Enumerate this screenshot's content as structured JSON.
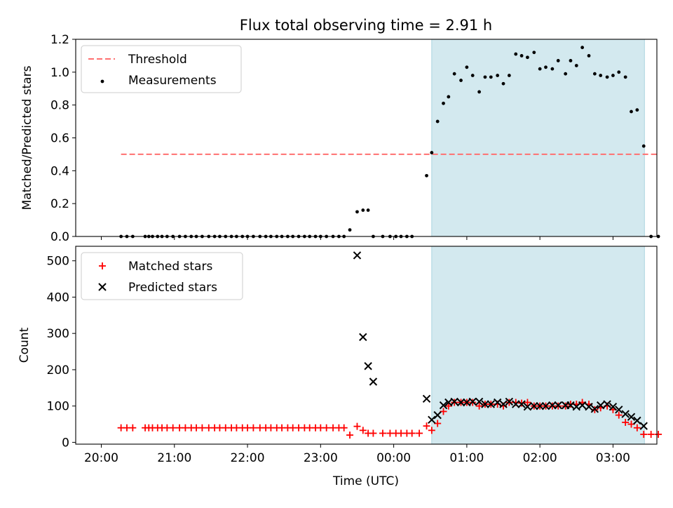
{
  "figure": {
    "title": "Flux total observing time = 2.91 h",
    "xlabel": "Time (UTC)",
    "x_ticks": [
      "20:00",
      "21:00",
      "22:00",
      "23:00",
      "00:00",
      "01:00",
      "02:00",
      "03:00"
    ]
  },
  "colors": {
    "threshold": "#ff7070",
    "measurement": "#000000",
    "matched": "#ff0000",
    "predicted": "#000000",
    "window_fill": "#d3e9ef",
    "window_edge": "#a9d4df"
  },
  "chart_data": [
    {
      "type": "scatter",
      "title": "Flux total observing time = 2.91 h",
      "xlabel": "",
      "ylabel": "Matched/Predicted stars",
      "x_unit": "hours from 20:00 UTC",
      "xlim": [
        -0.35,
        7.6
      ],
      "ylim": [
        0,
        1.2
      ],
      "y_ticks": [
        0,
        0.2,
        0.4,
        0.6,
        0.8,
        1.0,
        1.2
      ],
      "y_tick_labels": [
        "0.0",
        "0.2",
        "0.4",
        "0.6",
        "0.8",
        "1.0",
        "1.2"
      ],
      "grid": false,
      "legend": {
        "position": "top-left",
        "entries": [
          "Threshold",
          "Measurements"
        ]
      },
      "shaded_window": [
        4.52,
        7.43
      ],
      "threshold": {
        "name": "Threshold",
        "y": 0.5,
        "x_start": 0.27,
        "x_end": 7.6
      },
      "series": [
        {
          "name": "Measurements",
          "x": [
            0.27,
            0.35,
            0.43,
            0.6,
            0.65,
            0.7,
            0.77,
            0.83,
            0.9,
            0.98,
            1.07,
            1.15,
            1.23,
            1.3,
            1.38,
            1.47,
            1.55,
            1.62,
            1.7,
            1.78,
            1.85,
            1.93,
            2.0,
            2.08,
            2.17,
            2.25,
            2.32,
            2.4,
            2.47,
            2.55,
            2.62,
            2.7,
            2.78,
            2.85,
            2.93,
            3.0,
            3.08,
            3.17,
            3.25,
            3.32,
            3.4,
            3.5,
            3.58,
            3.65,
            3.72,
            3.85,
            3.95,
            4.03,
            4.1,
            4.18,
            4.25,
            4.45,
            4.52,
            4.6,
            4.68,
            4.75,
            4.83,
            4.92,
            5.0,
            5.08,
            5.17,
            5.25,
            5.33,
            5.42,
            5.5,
            5.58,
            5.67,
            5.75,
            5.83,
            5.92,
            6.0,
            6.08,
            6.17,
            6.25,
            6.35,
            6.42,
            6.5,
            6.58,
            6.67,
            6.75,
            6.83,
            6.92,
            7.0,
            7.08,
            7.17,
            7.25,
            7.33,
            7.42,
            7.52,
            7.62
          ],
          "y": [
            0,
            0,
            0,
            0,
            0,
            0,
            0,
            0,
            0,
            0,
            0,
            0,
            0,
            0,
            0,
            0,
            0,
            0,
            0,
            0,
            0,
            0,
            0,
            0,
            0,
            0,
            0,
            0,
            0,
            0,
            0,
            0,
            0,
            0,
            0,
            0,
            0,
            0,
            0,
            0,
            0.04,
            0.15,
            0.16,
            0.16,
            0,
            0,
            0,
            0,
            0,
            0,
            0,
            0.37,
            0.51,
            0.7,
            0.81,
            0.85,
            0.99,
            0.95,
            1.03,
            0.98,
            0.88,
            0.97,
            0.97,
            0.98,
            0.93,
            0.98,
            1.11,
            1.1,
            1.09,
            1.12,
            1.02,
            1.03,
            1.02,
            1.07,
            0.99,
            1.07,
            1.04,
            1.15,
            1.1,
            0.99,
            0.98,
            0.97,
            0.98,
            1.0,
            0.97,
            0.76,
            0.77,
            0.55,
            0,
            0
          ]
        }
      ]
    },
    {
      "type": "scatter",
      "title": "",
      "xlabel": "Time (UTC)",
      "ylabel": "Count",
      "x_unit": "hours from 20:00 UTC",
      "xlim": [
        -0.35,
        7.6
      ],
      "ylim": [
        -5,
        540
      ],
      "y_ticks": [
        0,
        100,
        200,
        300,
        400,
        500
      ],
      "y_tick_labels": [
        "0",
        "100",
        "200",
        "300",
        "400",
        "500"
      ],
      "grid": false,
      "legend": {
        "position": "top-left",
        "entries": [
          "Matched stars",
          "Predicted stars"
        ]
      },
      "shaded_window": [
        4.52,
        7.43
      ],
      "series": [
        {
          "name": "Matched stars",
          "marker": "+",
          "x": [
            0.27,
            0.35,
            0.43,
            0.6,
            0.65,
            0.7,
            0.77,
            0.83,
            0.9,
            0.98,
            1.07,
            1.15,
            1.23,
            1.3,
            1.38,
            1.47,
            1.55,
            1.62,
            1.7,
            1.78,
            1.85,
            1.93,
            2.0,
            2.08,
            2.17,
            2.25,
            2.32,
            2.4,
            2.47,
            2.55,
            2.62,
            2.7,
            2.78,
            2.85,
            2.93,
            3.0,
            3.08,
            3.17,
            3.25,
            3.32,
            3.4,
            3.5,
            3.58,
            3.65,
            3.72,
            3.85,
            3.95,
            4.03,
            4.1,
            4.18,
            4.25,
            4.35,
            4.45,
            4.52,
            4.6,
            4.68,
            4.75,
            4.83,
            4.92,
            5.0,
            5.08,
            5.17,
            5.25,
            5.33,
            5.42,
            5.5,
            5.58,
            5.67,
            5.75,
            5.83,
            5.92,
            6.0,
            6.08,
            6.17,
            6.25,
            6.35,
            6.42,
            6.5,
            6.58,
            6.67,
            6.75,
            6.83,
            6.92,
            7.0,
            7.08,
            7.17,
            7.25,
            7.33,
            7.42,
            7.52,
            7.62
          ],
          "y": [
            40,
            40,
            40,
            40,
            40,
            40,
            40,
            40,
            40,
            40,
            40,
            40,
            40,
            40,
            40,
            40,
            40,
            40,
            40,
            40,
            40,
            40,
            40,
            40,
            40,
            40,
            40,
            40,
            40,
            40,
            40,
            40,
            40,
            40,
            40,
            40,
            40,
            40,
            40,
            40,
            20,
            44,
            33,
            25,
            25,
            25,
            25,
            25,
            25,
            25,
            25,
            25,
            45,
            33,
            52,
            85,
            100,
            110,
            110,
            110,
            110,
            100,
            105,
            105,
            105,
            100,
            110,
            110,
            108,
            110,
            100,
            100,
            100,
            100,
            100,
            100,
            105,
            105,
            110,
            105,
            90,
            95,
            100,
            90,
            75,
            55,
            50,
            40,
            22,
            22,
            22
          ]
        },
        {
          "name": "Predicted stars",
          "marker": "x",
          "x": [
            3.5,
            3.58,
            3.65,
            3.72,
            4.45,
            4.52,
            4.6,
            4.68,
            4.75,
            4.83,
            4.92,
            5.0,
            5.08,
            5.17,
            5.25,
            5.33,
            5.42,
            5.5,
            5.58,
            5.67,
            5.75,
            5.83,
            5.92,
            6.0,
            6.08,
            6.17,
            6.25,
            6.35,
            6.42,
            6.5,
            6.58,
            6.67,
            6.75,
            6.83,
            6.92,
            7.0,
            7.08,
            7.17,
            7.25,
            7.33,
            7.42
          ],
          "y": [
            515,
            290,
            210,
            167,
            120,
            62,
            75,
            102,
            110,
            112,
            110,
            110,
            112,
            112,
            105,
            105,
            110,
            105,
            112,
            105,
            105,
            98,
            100,
            100,
            100,
            102,
            102,
            102,
            102,
            98,
            102,
            98,
            92,
            102,
            105,
            98,
            90,
            78,
            70,
            60,
            45
          ]
        }
      ]
    }
  ]
}
